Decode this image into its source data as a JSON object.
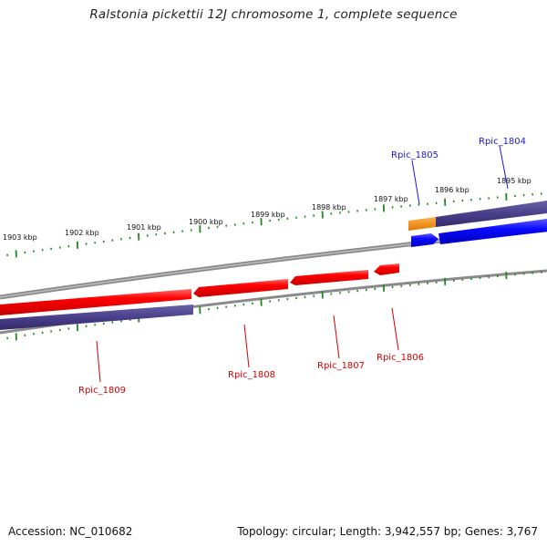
{
  "title": "Ralstonia pickettii 12J chromosome 1, complete sequence",
  "footer": {
    "accession": "Accession: NC_010682",
    "summary": "Topology: circular; Length: 3,942,557 bp; Genes: 3,767"
  },
  "ticks": [
    "1903 kbp",
    "1902 kbp",
    "1901 kbp",
    "1900 kbp",
    "1899 kbp",
    "1898 kbp",
    "1897 kbp",
    "1896 kbp",
    "1895 kbp"
  ],
  "genes": [
    {
      "name": "Rpic_1804",
      "strand": "forward",
      "color": "#1a1ad6"
    },
    {
      "name": "Rpic_1805",
      "strand": "forward",
      "color": "#1a1ad6"
    },
    {
      "name": "Rpic_1806",
      "strand": "reverse",
      "color": "#d40000"
    },
    {
      "name": "Rpic_1807",
      "strand": "reverse",
      "color": "#d40000"
    },
    {
      "name": "Rpic_1808",
      "strand": "reverse",
      "color": "#d40000"
    },
    {
      "name": "Rpic_1809",
      "strand": "reverse",
      "color": "#d40000"
    }
  ],
  "colors": {
    "tick": "#1e8a1e",
    "backbone": "#8a8a8a",
    "forward_cds": "#0a0aff",
    "reverse_cds": "#ff0000",
    "gene_bar": "#4a3f8a",
    "orange_gene": "#ff8c00"
  }
}
